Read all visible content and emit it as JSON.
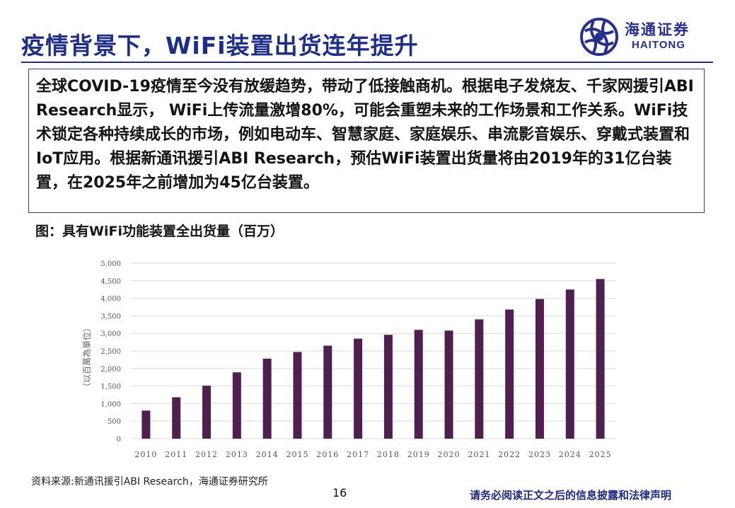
{
  "slide": {
    "title": "疫情背景下，WiFi装置出货连年提升",
    "body_text": "全球COVID-19疫情至今没有放缓趋势，带动了低接触商机。根据电子发烧友、千家网援引ABI Research显示， WiFi上传流量激增80%，可能会重塑未来的工作场景和工作关系。WiFi技术锁定各种持续成长的市场，例如电动车、智慧家庭、家庭娱乐、串流影音娱乐、穿戴式装置和IoT应用。根据新通讯援引ABI Research，预估WiFi装置出货量将由2019年的31亿台装置，在2025年之前增加为45亿台装置。",
    "figure_caption": "图：具有WiFi功能装置全出货量（百万）",
    "source": "资料来源:新通讯援引ABI Research，海通证券研究所",
    "page_number": "16",
    "disclaimer": "请务必阅读正文之后的信息披露和法律声明"
  },
  "logo": {
    "name_cn": "海通证券",
    "name_en": "HAITONG"
  },
  "colors": {
    "title": "#1f2f86",
    "bar": "#4f1f4f",
    "grid": "#d9d9d9",
    "border": "#34407e"
  },
  "chart_data": {
    "type": "bar",
    "title": "",
    "ylabel": "（以百萬為單位）",
    "xlabel": "",
    "ylim": [
      0,
      5000
    ],
    "yticks": [
      "0",
      "500",
      "1,000",
      "1,500",
      "2,000",
      "2,500",
      "3,000",
      "3,500",
      "4,000",
      "4,500",
      "5,000"
    ],
    "ytick_values": [
      0,
      500,
      1000,
      1500,
      2000,
      2500,
      3000,
      3500,
      4000,
      4500,
      5000
    ],
    "categories": [
      "2010",
      "2011",
      "2012",
      "2013",
      "2014",
      "2015",
      "2016",
      "2017",
      "2018",
      "2019",
      "2020",
      "2021",
      "2022",
      "2023",
      "2024",
      "2025"
    ],
    "values": [
      800,
      1180,
      1510,
      1890,
      2280,
      2470,
      2650,
      2850,
      2960,
      3100,
      3080,
      3400,
      3680,
      3980,
      4250,
      4550
    ]
  }
}
